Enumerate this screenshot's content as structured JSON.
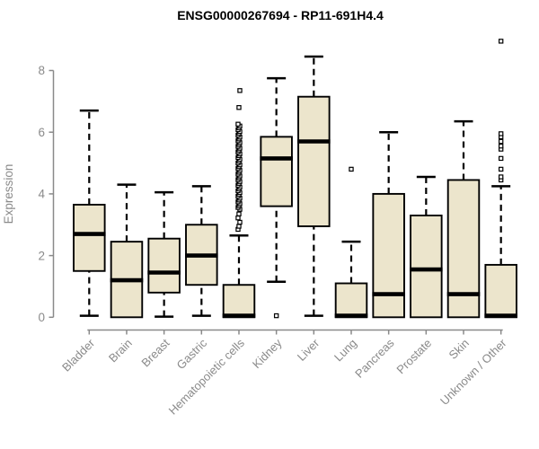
{
  "chart_data": {
    "type": "boxplot",
    "title": "ENSG00000267694 - RP11-691H4.4",
    "ylabel": "Expression",
    "ylim": [
      0,
      8
    ],
    "yticks": [
      0,
      2,
      4,
      6,
      8
    ],
    "grid": false,
    "legend": "none",
    "categories": [
      "Bladder",
      "Brain",
      "Breast",
      "Gastric",
      "Hematopoietic cells",
      "Kidney",
      "Liver",
      "Lung",
      "Pancreas",
      "Prostate",
      "Skin",
      "Unknown / Other"
    ],
    "series": [
      {
        "name": "Bladder",
        "whislo": 0.05,
        "q1": 1.5,
        "med": 2.7,
        "q3": 3.65,
        "whishi": 6.7,
        "outliers": []
      },
      {
        "name": "Brain",
        "whislo": 0,
        "q1": 0,
        "med": 1.2,
        "q3": 2.45,
        "whishi": 4.3,
        "outliers": []
      },
      {
        "name": "Breast",
        "whislo": 0.02,
        "q1": 0.8,
        "med": 1.45,
        "q3": 2.55,
        "whishi": 4.05,
        "outliers": []
      },
      {
        "name": "Gastric",
        "whislo": 0.05,
        "q1": 1.05,
        "med": 2.0,
        "q3": 3.0,
        "whishi": 4.25,
        "outliers": []
      },
      {
        "name": "Hematopoietic cells",
        "whislo": 0,
        "q1": 0,
        "med": 0.05,
        "q3": 1.05,
        "whishi": 2.65,
        "outliers": [
          2.85,
          2.95,
          3.08,
          3.22,
          3.35,
          3.5,
          3.56,
          3.62,
          3.68,
          3.74,
          3.8,
          3.86,
          3.92,
          3.98,
          4.04,
          4.1,
          4.16,
          4.22,
          4.28,
          4.34,
          4.4,
          4.46,
          4.52,
          4.58,
          4.64,
          4.7,
          4.76,
          4.82,
          4.88,
          4.94,
          5.0,
          5.06,
          5.12,
          5.18,
          5.24,
          5.3,
          5.36,
          5.42,
          5.48,
          5.54,
          5.6,
          5.66,
          5.72,
          5.78,
          5.84,
          5.9,
          5.96,
          6.02,
          6.08,
          6.14,
          6.2,
          6.26,
          6.8,
          7.35
        ]
      },
      {
        "name": "Kidney",
        "whislo": 1.15,
        "q1": 3.6,
        "med": 5.15,
        "q3": 5.85,
        "whishi": 7.75,
        "outliers": [
          0.05
        ]
      },
      {
        "name": "Liver",
        "whislo": 0.05,
        "q1": 2.95,
        "med": 5.7,
        "q3": 7.15,
        "whishi": 8.45,
        "outliers": []
      },
      {
        "name": "Lung",
        "whislo": 0,
        "q1": 0,
        "med": 0.05,
        "q3": 1.1,
        "whishi": 2.45,
        "outliers": [
          4.8
        ]
      },
      {
        "name": "Pancreas",
        "whislo": 0,
        "q1": 0,
        "med": 0.75,
        "q3": 4.0,
        "whishi": 6.0,
        "outliers": []
      },
      {
        "name": "Prostate",
        "whislo": 0,
        "q1": 0,
        "med": 1.55,
        "q3": 3.3,
        "whishi": 4.55,
        "outliers": []
      },
      {
        "name": "Skin",
        "whislo": 0,
        "q1": 0,
        "med": 0.75,
        "q3": 4.45,
        "whishi": 6.35,
        "outliers": []
      },
      {
        "name": "Unknown / Other",
        "whislo": 0,
        "q1": 0,
        "med": 0.05,
        "q3": 1.7,
        "whishi": 4.25,
        "outliers": [
          4.45,
          4.55,
          4.8,
          5.15,
          5.45,
          5.55,
          5.7,
          5.85,
          5.95,
          8.95
        ]
      }
    ],
    "colors": {
      "box_fill": "#ECE5CC",
      "box_border": "#000000",
      "median": "#000000",
      "whisker": "#000000",
      "outlier_fill": "#FFFFFF",
      "axis": "#8A8A8A",
      "tick_label": "#8A8A8A",
      "title": "#000000",
      "background": "#FFFFFF"
    }
  }
}
